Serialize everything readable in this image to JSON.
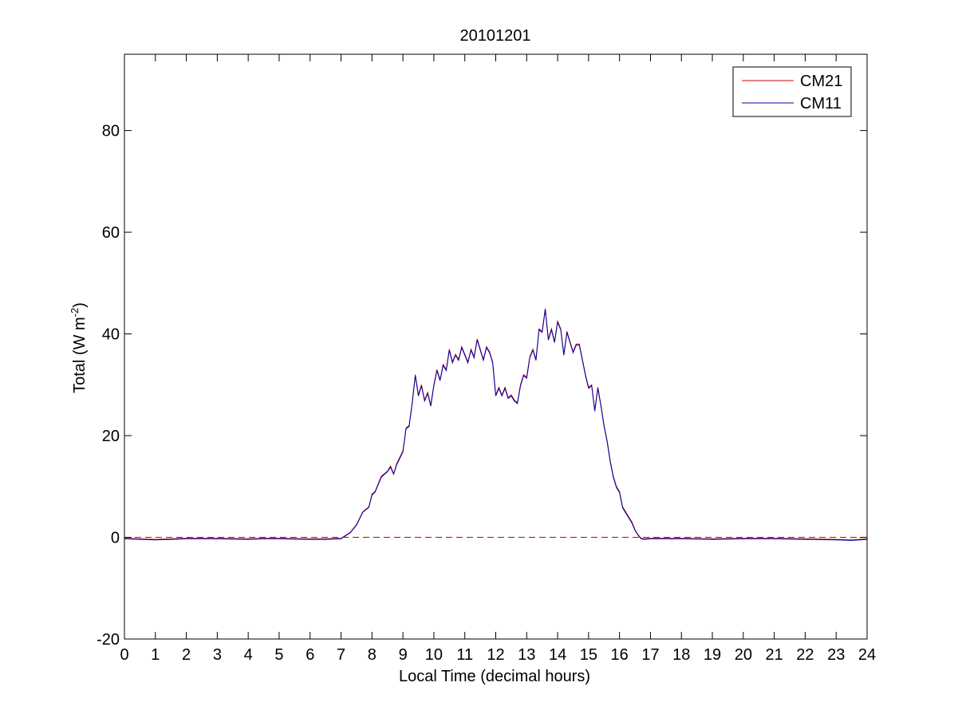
{
  "chart_data": {
    "type": "line",
    "title": "20101201",
    "xlabel": "Local Time (decimal hours)",
    "ylabel_main": "Total (W m",
    "ylabel_sup": "-2",
    "ylabel_close": ")",
    "xlim": [
      0,
      24
    ],
    "ylim": [
      -20,
      95
    ],
    "xticks": [
      "0",
      "1",
      "2",
      "3",
      "4",
      "5",
      "6",
      "7",
      "8",
      "9",
      "10",
      "11",
      "12",
      "13",
      "14",
      "15",
      "16",
      "17",
      "18",
      "19",
      "20",
      "21",
      "22",
      "23",
      "24"
    ],
    "yticks": [
      "-20",
      "0",
      "20",
      "40",
      "60",
      "80"
    ],
    "grid": false,
    "legend_position": "top-right",
    "reference_line": {
      "y": 0,
      "style": "dashed",
      "color": "#cc0000"
    },
    "series": [
      {
        "name": "CM21",
        "color": "#cc0000",
        "x": [
          0,
          1,
          1.5,
          2,
          3,
          4,
          4.5,
          5,
          6,
          6.5,
          7,
          7.1,
          7.3,
          7.5,
          7.7,
          7.9,
          8.0,
          8.1,
          8.3,
          8.5,
          8.6,
          8.7,
          8.8,
          9.0,
          9.1,
          9.2,
          9.3,
          9.4,
          9.5,
          9.6,
          9.7,
          9.8,
          9.9,
          10.0,
          10.1,
          10.2,
          10.3,
          10.4,
          10.5,
          10.6,
          10.7,
          10.8,
          10.9,
          11.0,
          11.1,
          11.2,
          11.3,
          11.4,
          11.5,
          11.6,
          11.7,
          11.8,
          11.9,
          12.0,
          12.1,
          12.2,
          12.3,
          12.4,
          12.5,
          12.6,
          12.7,
          12.8,
          12.9,
          13.0,
          13.1,
          13.2,
          13.3,
          13.4,
          13.5,
          13.6,
          13.7,
          13.8,
          13.9,
          14.0,
          14.1,
          14.2,
          14.3,
          14.4,
          14.5,
          14.6,
          14.7,
          14.8,
          14.9,
          15.0,
          15.1,
          15.2,
          15.3,
          15.4,
          15.5,
          15.6,
          15.7,
          15.8,
          15.9,
          16.0,
          16.1,
          16.2,
          16.3,
          16.4,
          16.5,
          16.6,
          16.7,
          16.8,
          17.0,
          18,
          19,
          20,
          21,
          22,
          23,
          23.5,
          24
        ],
        "y": [
          -0.2,
          -0.4,
          -0.3,
          -0.2,
          -0.2,
          -0.3,
          -0.2,
          -0.2,
          -0.3,
          -0.3,
          -0.2,
          0.2,
          1.0,
          2.5,
          5.0,
          6.0,
          8.5,
          9.0,
          12.0,
          13.0,
          14.0,
          12.5,
          14.5,
          17.0,
          21.5,
          22.0,
          26.5,
          32.0,
          28.0,
          30.0,
          27.0,
          28.5,
          26.0,
          30.0,
          33.0,
          31.0,
          34.0,
          33.0,
          37.0,
          34.5,
          36.0,
          35.0,
          37.5,
          36.0,
          34.5,
          37.0,
          35.5,
          39.0,
          37.0,
          35.0,
          37.5,
          36.5,
          34.5,
          28.0,
          29.5,
          28.0,
          29.5,
          27.5,
          28.0,
          27.0,
          26.5,
          30.0,
          32.0,
          31.5,
          35.5,
          37.0,
          35.0,
          41.0,
          40.5,
          45.0,
          39.0,
          41.0,
          38.5,
          42.5,
          41.0,
          36.0,
          40.5,
          38.5,
          36.5,
          38.0,
          38.0,
          35.0,
          32.0,
          29.5,
          30.0,
          25.0,
          29.5,
          26.0,
          22.0,
          19.0,
          15.0,
          12.0,
          10.0,
          9.0,
          6.0,
          5.0,
          4.0,
          3.0,
          1.5,
          0.5,
          -0.2,
          -0.3,
          -0.2,
          -0.2,
          -0.3,
          -0.2,
          -0.2,
          -0.3,
          -0.4,
          -0.5,
          -0.3
        ]
      },
      {
        "name": "CM11",
        "color": "#0000aa",
        "x": [
          0,
          1,
          1.5,
          2,
          3,
          4,
          4.5,
          5,
          6,
          6.5,
          7,
          7.1,
          7.3,
          7.5,
          7.7,
          7.9,
          8.0,
          8.1,
          8.3,
          8.5,
          8.6,
          8.7,
          8.8,
          9.0,
          9.1,
          9.2,
          9.3,
          9.4,
          9.5,
          9.6,
          9.7,
          9.8,
          9.9,
          10.0,
          10.1,
          10.2,
          10.3,
          10.4,
          10.5,
          10.6,
          10.7,
          10.8,
          10.9,
          11.0,
          11.1,
          11.2,
          11.3,
          11.4,
          11.5,
          11.6,
          11.7,
          11.8,
          11.9,
          12.0,
          12.1,
          12.2,
          12.3,
          12.4,
          12.5,
          12.6,
          12.7,
          12.8,
          12.9,
          13.0,
          13.1,
          13.2,
          13.3,
          13.4,
          13.5,
          13.6,
          13.7,
          13.8,
          13.9,
          14.0,
          14.1,
          14.2,
          14.3,
          14.4,
          14.5,
          14.6,
          14.7,
          14.8,
          14.9,
          15.0,
          15.1,
          15.2,
          15.3,
          15.4,
          15.5,
          15.6,
          15.7,
          15.8,
          15.9,
          16.0,
          16.1,
          16.2,
          16.3,
          16.4,
          16.5,
          16.6,
          16.7,
          16.8,
          17.0,
          18,
          19,
          20,
          21,
          22,
          23,
          23.5,
          24
        ],
        "y": [
          -0.3,
          -0.5,
          -0.4,
          -0.3,
          -0.3,
          -0.4,
          -0.3,
          -0.3,
          -0.4,
          -0.4,
          -0.3,
          0.1,
          0.9,
          2.4,
          4.9,
          5.9,
          8.3,
          8.9,
          11.8,
          12.9,
          13.8,
          12.4,
          14.3,
          16.8,
          21.3,
          21.8,
          26.3,
          31.8,
          27.8,
          29.8,
          26.8,
          28.3,
          25.8,
          29.8,
          32.8,
          30.8,
          33.8,
          32.8,
          36.8,
          34.3,
          35.8,
          34.8,
          37.3,
          35.8,
          34.3,
          36.8,
          35.3,
          38.8,
          36.8,
          34.8,
          37.3,
          36.3,
          34.3,
          27.8,
          29.3,
          27.8,
          29.3,
          27.3,
          27.8,
          26.8,
          26.3,
          29.8,
          31.8,
          31.3,
          35.3,
          36.8,
          34.8,
          40.8,
          40.3,
          44.8,
          38.8,
          40.8,
          38.3,
          42.3,
          40.8,
          35.8,
          40.3,
          38.3,
          36.3,
          37.8,
          37.8,
          34.8,
          31.8,
          29.3,
          29.8,
          24.8,
          29.3,
          25.8,
          21.8,
          18.8,
          14.8,
          11.8,
          9.8,
          8.8,
          5.8,
          4.8,
          3.8,
          2.8,
          1.4,
          0.4,
          -0.3,
          -0.4,
          -0.3,
          -0.3,
          -0.4,
          -0.3,
          -0.3,
          -0.4,
          -0.5,
          -0.6,
          -0.4
        ]
      }
    ]
  }
}
